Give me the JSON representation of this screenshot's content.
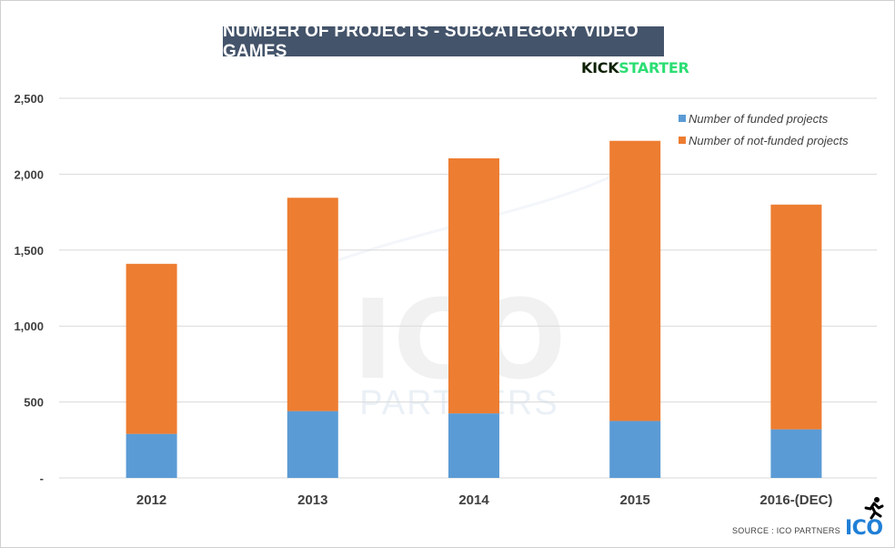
{
  "title": "NUMBER OF PROJECTS - SUBCATEGORY VIDEO GAMES",
  "brand_logo": {
    "part1": "KICK",
    "part2": "STARTER"
  },
  "watermark": {
    "main": "ICO",
    "sub": "PARTNERS"
  },
  "source_text": "SOURCE : ICO PARTNERS",
  "footer_logo": "ICO",
  "colors": {
    "funded": "#5b9bd5",
    "not_funded": "#ed7d31",
    "title_bg": "#44546a",
    "grid": "#d9d9d9"
  },
  "chart_data": {
    "type": "bar",
    "stacked": true,
    "categories": [
      "2012",
      "2013",
      "2014",
      "2015",
      "2016-(DEC)"
    ],
    "series": [
      {
        "name": "Number of funded projects",
        "values": [
          290,
          440,
          425,
          375,
          320
        ]
      },
      {
        "name": "Number of not-funded projects",
        "values": [
          1120,
          1405,
          1680,
          1845,
          1480
        ]
      }
    ],
    "ylim": [
      0,
      2500
    ],
    "yticks": [
      0,
      500,
      1000,
      1500,
      2000,
      2500
    ],
    "ytick_labels": [
      "-",
      "500",
      "1,000",
      "1,500",
      "2,000",
      "2,500"
    ],
    "grid": true,
    "legend": "top-right"
  }
}
